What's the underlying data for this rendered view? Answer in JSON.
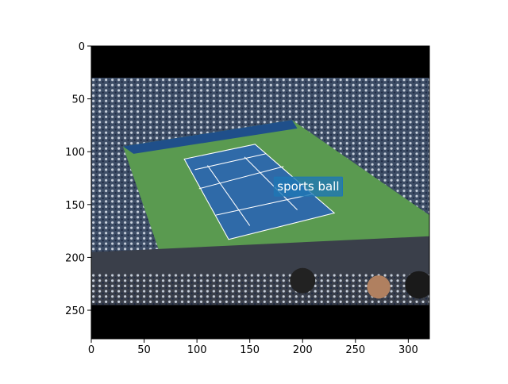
{
  "chart_data": {
    "type": "image",
    "xlim": [
      0,
      320
    ],
    "ylim": [
      277,
      0
    ],
    "xticks": [
      0,
      50,
      100,
      150,
      200,
      250,
      300
    ],
    "yticks": [
      0,
      50,
      100,
      150,
      200,
      250
    ],
    "annotations": [
      {
        "text": "sports ball",
        "x": 173,
        "y": 124,
        "color": "#1f77b4"
      }
    ]
  }
}
